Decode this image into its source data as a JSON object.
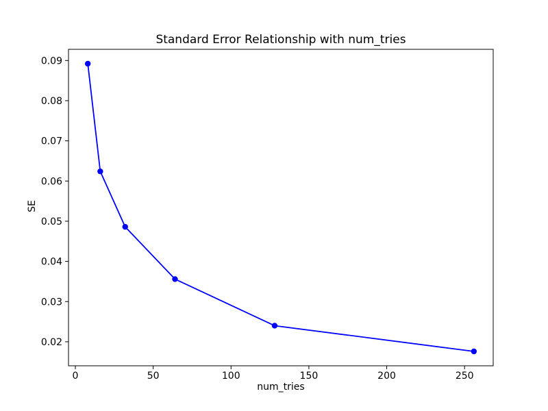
{
  "figure": {
    "background": "#ffffff",
    "text_color": "#000000",
    "spine_color": "#000000"
  },
  "chart_data": {
    "type": "line",
    "title": "Standard Error Relationship with num_tries",
    "xlabel": "num_tries",
    "ylabel": "SE",
    "x": [
      8,
      16,
      32,
      64,
      128,
      256
    ],
    "y": [
      0.0892,
      0.0624,
      0.0486,
      0.0356,
      0.024,
      0.0176
    ],
    "line_color": "#0000ff",
    "marker": "circle",
    "marker_radius": 4.2,
    "line_width": 1.8,
    "xlim": [
      -4.4,
      268.4
    ],
    "ylim": [
      0.01402,
      0.09278
    ],
    "xticks": [
      0,
      50,
      100,
      150,
      200,
      250
    ],
    "xtick_labels": [
      "0",
      "50",
      "100",
      "150",
      "200",
      "250"
    ],
    "yticks": [
      0.02,
      0.03,
      0.04,
      0.05,
      0.06,
      0.07,
      0.08,
      0.09
    ],
    "ytick_labels": [
      "0.02",
      "0.03",
      "0.04",
      "0.05",
      "0.06",
      "0.07",
      "0.08",
      "0.09"
    ],
    "grid": false,
    "legend_position": "none"
  }
}
